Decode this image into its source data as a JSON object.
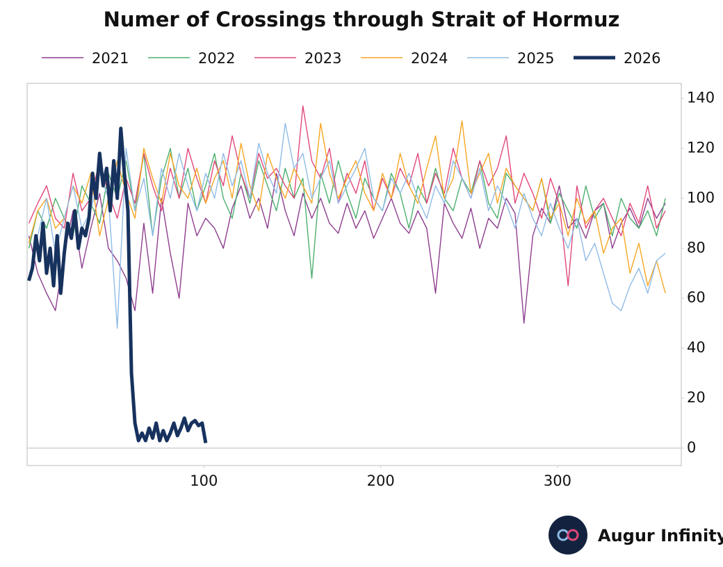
{
  "chart_data": {
    "type": "line",
    "title": "Numer of Crossings through Strait of Hormuz",
    "brand": "Augur Infinity",
    "xlim": [
      0,
      370
    ],
    "xticks": [
      100,
      200,
      300
    ],
    "ylim": [
      -7,
      146
    ],
    "yticks": [
      0,
      20,
      40,
      60,
      80,
      100,
      120,
      140
    ],
    "x": [
      1,
      6,
      11,
      16,
      21,
      26,
      31,
      36,
      41,
      46,
      51,
      56,
      61,
      66,
      71,
      76,
      81,
      86,
      91,
      96,
      101,
      106,
      111,
      116,
      121,
      126,
      131,
      136,
      141,
      146,
      151,
      156,
      161,
      166,
      171,
      176,
      181,
      186,
      191,
      196,
      201,
      206,
      211,
      216,
      221,
      226,
      231,
      236,
      241,
      246,
      251,
      256,
      261,
      266,
      271,
      276,
      281,
      286,
      291,
      296,
      301,
      306,
      311,
      316,
      321,
      326,
      331,
      336,
      341,
      346,
      351,
      356,
      361
    ],
    "series": [
      {
        "name": "2021",
        "color": "#8e3d8e",
        "line_width": 1.4,
        "values": [
          85,
          70,
          62,
          55,
          78,
          95,
          72,
          88,
          102,
          80,
          75,
          68,
          55,
          90,
          62,
          100,
          78,
          60,
          98,
          85,
          92,
          88,
          80,
          96,
          105,
          92,
          100,
          88,
          110,
          95,
          85,
          102,
          92,
          100,
          90,
          86,
          98,
          88,
          95,
          84,
          92,
          100,
          90,
          86,
          95,
          88,
          62,
          98,
          90,
          84,
          96,
          80,
          92,
          88,
          100,
          94,
          50,
          85,
          96,
          90,
          105,
          88,
          92,
          84,
          95,
          98,
          80,
          90,
          96,
          88,
          100,
          92,
          98
        ]
      },
      {
        "name": "2022",
        "color": "#4caf6e",
        "line_width": 1.4,
        "values": [
          80,
          95,
          88,
          100,
          92,
          85,
          105,
          98,
          90,
          110,
          100,
          115,
          95,
          118,
          85,
          108,
          120,
          100,
          112,
          95,
          105,
          118,
          100,
          92,
          110,
          98,
          115,
          105,
          95,
          112,
          100,
          108,
          68,
          110,
          98,
          115,
          102,
          92,
          108,
          100,
          95,
          110,
          102,
          88,
          105,
          98,
          112,
          100,
          95,
          108,
          102,
          115,
          98,
          92,
          110,
          105,
          100,
          95,
          108,
          90,
          102,
          95,
          88,
          105,
          92,
          98,
          85,
          100,
          92,
          88,
          95,
          85,
          100
        ]
      },
      {
        "name": "2023",
        "color": "#e0487a",
        "line_width": 1.4,
        "values": [
          90,
          98,
          105,
          92,
          88,
          110,
          95,
          100,
          115,
          102,
          92,
          108,
          98,
          118,
          105,
          95,
          112,
          100,
          120,
          108,
          98,
          115,
          105,
          125,
          110,
          100,
          118,
          108,
          112,
          105,
          100,
          137,
          115,
          108,
          120,
          98,
          110,
          102,
          115,
          95,
          108,
          100,
          112,
          105,
          118,
          98,
          110,
          102,
          120,
          108,
          100,
          115,
          105,
          112,
          125,
          98,
          110,
          102,
          92,
          108,
          98,
          65,
          105,
          88,
          95,
          100,
          92,
          85,
          98,
          90,
          105,
          88,
          95
        ]
      },
      {
        "name": "2024",
        "color": "#f5a623",
        "line_width": 1.4,
        "values": [
          82,
          95,
          100,
          88,
          92,
          105,
          98,
          110,
          85,
          100,
          115,
          102,
          92,
          120,
          108,
          98,
          118,
          105,
          100,
          112,
          98,
          108,
          115,
          100,
          122,
          105,
          95,
          118,
          108,
          100,
          112,
          105,
          98,
          130,
          110,
          100,
          108,
          115,
          102,
          95,
          110,
          100,
          118,
          105,
          98,
          112,
          125,
          100,
          108,
          131,
          102,
          110,
          118,
          98,
          112,
          105,
          100,
          95,
          108,
          92,
          98,
          85,
          100,
          90,
          95,
          78,
          88,
          92,
          70,
          82,
          65,
          75,
          62
        ]
      },
      {
        "name": "2025",
        "color": "#8fbbe6",
        "line_width": 1.4,
        "values": [
          68,
          85,
          100,
          78,
          92,
          105,
          88,
          95,
          110,
          100,
          48,
          120,
          95,
          108,
          85,
          112,
          100,
          118,
          105,
          95,
          110,
          100,
          118,
          105,
          115,
          100,
          122,
          110,
          102,
          130,
          112,
          118,
          100,
          108,
          115,
          98,
          105,
          112,
          120,
          100,
          95,
          108,
          102,
          110,
          100,
          92,
          105,
          98,
          115,
          108,
          100,
          112,
          95,
          105,
          98,
          88,
          102,
          92,
          85,
          98,
          88,
          80,
          92,
          75,
          82,
          70,
          58,
          55,
          65,
          72,
          62,
          75,
          78
        ]
      },
      {
        "name": "2026",
        "color": "#17325e",
        "line_width": 5,
        "x": [
          1,
          3,
          5,
          7,
          9,
          11,
          13,
          15,
          17,
          19,
          21,
          23,
          25,
          27,
          29,
          31,
          33,
          35,
          37,
          39,
          41,
          43,
          45,
          47,
          49,
          51,
          53,
          55,
          57,
          59,
          61,
          63,
          65,
          67,
          69,
          71,
          73,
          75,
          77,
          79,
          81,
          83,
          85,
          87,
          89,
          91,
          93,
          95,
          97,
          99,
          101
        ],
        "values": [
          67,
          72,
          85,
          75,
          90,
          70,
          80,
          65,
          85,
          62,
          78,
          90,
          84,
          95,
          80,
          88,
          85,
          92,
          110,
          100,
          118,
          105,
          112,
          95,
          115,
          100,
          128,
          110,
          95,
          30,
          10,
          3,
          6,
          3,
          8,
          4,
          10,
          3,
          7,
          3,
          6,
          10,
          5,
          8,
          12,
          7,
          10,
          11,
          9,
          10,
          2
        ]
      }
    ]
  }
}
